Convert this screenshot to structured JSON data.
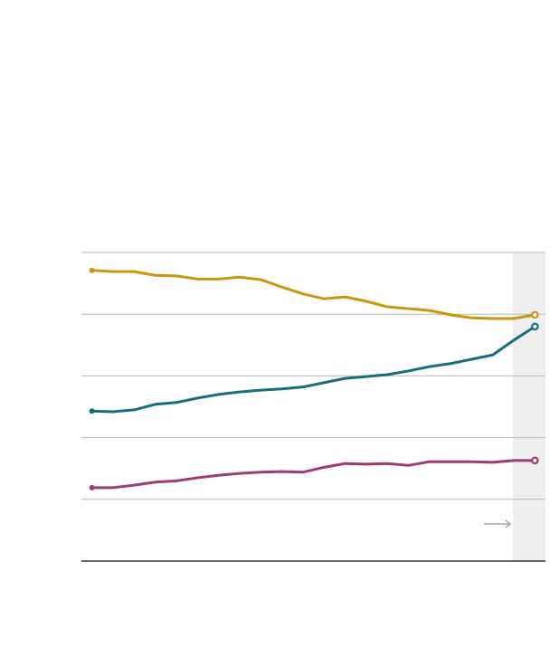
{
  "chart_data": {
    "type": "line",
    "x": [
      0,
      1,
      2,
      3,
      4,
      5,
      6,
      7,
      8,
      9,
      10,
      11,
      12,
      13,
      14,
      15,
      16,
      17,
      18,
      19,
      20,
      21
    ],
    "xlim": [
      -0.5,
      21.5
    ],
    "ylim": [
      0,
      5
    ],
    "yticks": [
      0,
      1,
      2,
      3,
      4,
      5
    ],
    "grid": true,
    "series": [
      {
        "color": "#c8960f",
        "values": [
          4.71,
          4.69,
          4.69,
          4.63,
          4.62,
          4.57,
          4.57,
          4.6,
          4.56,
          4.44,
          4.33,
          4.25,
          4.28,
          4.21,
          4.12,
          4.09,
          4.06,
          3.99,
          3.94,
          3.93,
          3.93,
          3.99
        ]
      },
      {
        "color": "#146f7c",
        "values": [
          2.43,
          2.42,
          2.45,
          2.54,
          2.57,
          2.64,
          2.7,
          2.74,
          2.77,
          2.79,
          2.82,
          2.89,
          2.96,
          2.99,
          3.02,
          3.08,
          3.15,
          3.2,
          3.27,
          3.34,
          3.58,
          3.8
        ]
      },
      {
        "color": "#a23a6f",
        "values": [
          1.19,
          1.19,
          1.23,
          1.28,
          1.3,
          1.35,
          1.39,
          1.42,
          1.44,
          1.45,
          1.44,
          1.52,
          1.58,
          1.57,
          1.58,
          1.55,
          1.61,
          1.61,
          1.61,
          1.6,
          1.63,
          1.63
        ]
      }
    ]
  }
}
